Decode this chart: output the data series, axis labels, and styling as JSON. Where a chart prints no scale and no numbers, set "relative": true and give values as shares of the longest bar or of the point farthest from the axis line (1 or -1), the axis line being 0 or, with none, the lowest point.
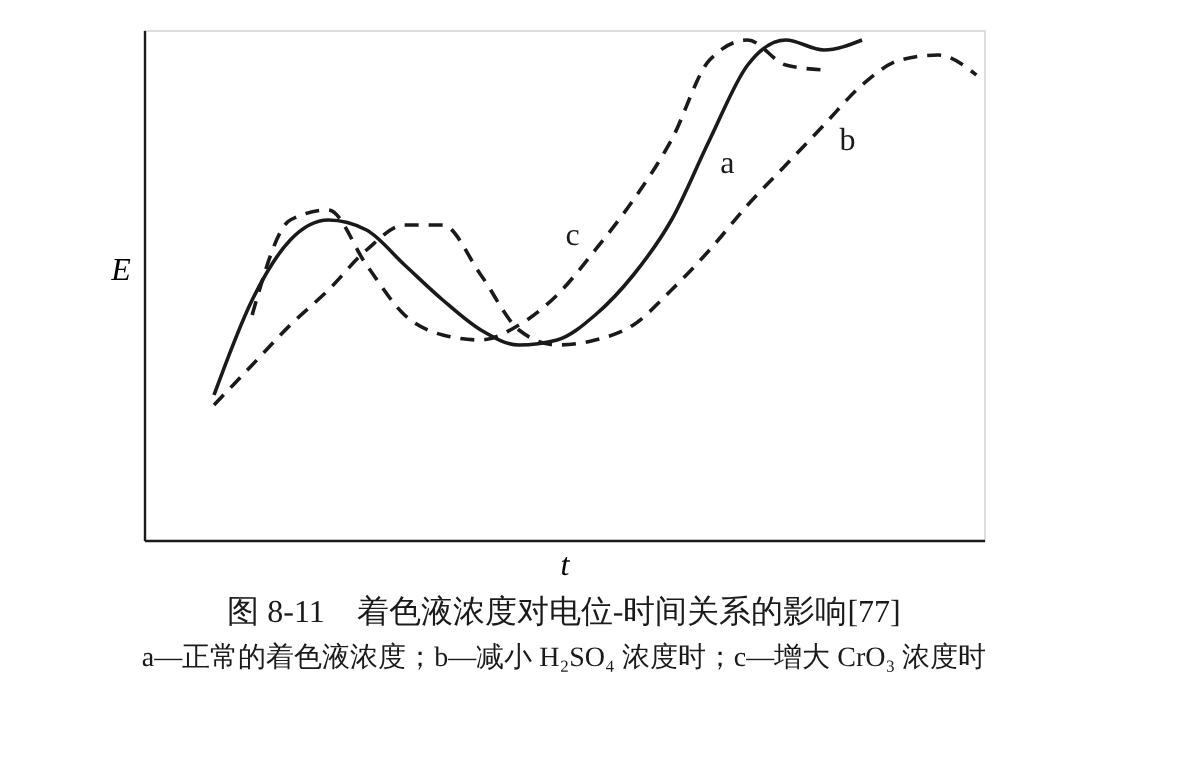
{
  "chart_data": {
    "type": "line",
    "relative": true,
    "title": "图 8-11　着色液浓度对电位-时间关系的影响[77]",
    "xlabel": "t",
    "ylabel": "E",
    "annotations": [
      "a—正常的着色液浓度；b—减小 H₂SO₄ 浓度时；c—增大 CrO₃ 浓度时"
    ],
    "categories": [
      null,
      null,
      null,
      null,
      null,
      null,
      null,
      null,
      null,
      null,
      null,
      null,
      null,
      null,
      null,
      null,
      null,
      null,
      null,
      null,
      null
    ],
    "series": [
      {
        "name": "a",
        "color": "#1a1a1a",
        "line_style": "solid",
        "values": [
          0.29,
          0.48,
          0.6,
          0.64,
          0.62,
          0.55,
          0.48,
          0.42,
          0.39,
          0.4,
          0.45,
          0.53,
          0.64,
          0.8,
          0.95,
          1.0,
          0.98,
          1.0,
          null,
          null,
          null
        ]
      },
      {
        "name": "b",
        "color": "#1a1a1a",
        "line_style": "dashed",
        "values": [
          0.27,
          0.35,
          0.43,
          0.5,
          0.58,
          0.63,
          0.63,
          0.53,
          0.42,
          0.39,
          0.4,
          0.43,
          0.5,
          0.58,
          0.67,
          0.75,
          0.83,
          0.91,
          0.96,
          0.97,
          0.93
        ]
      },
      {
        "name": "c",
        "color": "#1a1a1a",
        "line_style": "dashed",
        "values": [
          null,
          0.45,
          0.64,
          0.66,
          0.55,
          0.45,
          0.41,
          0.4,
          0.43,
          0.49,
          0.58,
          0.68,
          0.8,
          0.96,
          1.0,
          0.95,
          0.94,
          null,
          null,
          null,
          null
        ]
      }
    ]
  }
}
